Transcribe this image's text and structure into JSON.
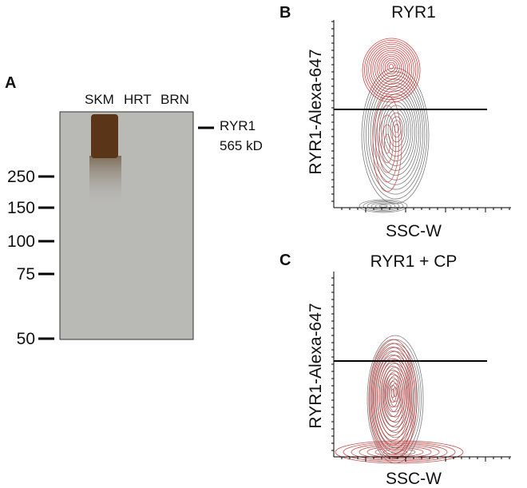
{
  "panel_a": {
    "label": "A",
    "lanes": [
      "SKM",
      "HRT",
      "BRN"
    ],
    "markers": [
      "250",
      "150",
      "100",
      "75",
      "50"
    ],
    "band_label": [
      "RYR1",
      "565 kD"
    ]
  },
  "panel_b": {
    "label": "B",
    "title": "RYR1",
    "y_label": "RYR1-Alexa-647",
    "x_label": "SSC-W"
  },
  "panel_c": {
    "label": "C",
    "title": "RYR1 + CP",
    "y_label": "RYR1-Alexa-647",
    "x_label": "SSC-W"
  }
}
